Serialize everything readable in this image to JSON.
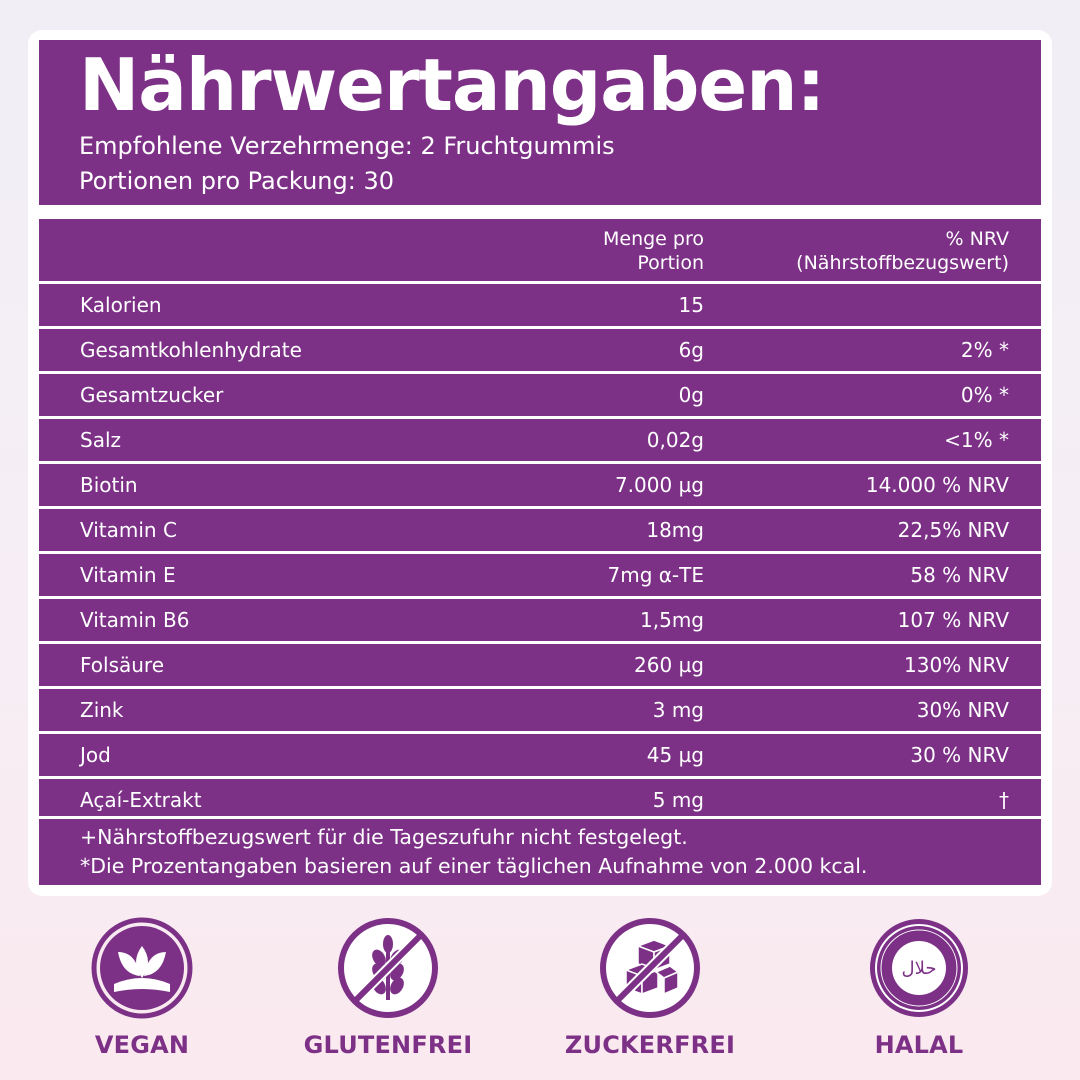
{
  "header": {
    "title": "Nährwertangaben:",
    "serving": "Empfohlene Verzehrmenge: 2 Fruchtgummis",
    "portions": "Portionen pro Packung: 30"
  },
  "table": {
    "col_amount_1": "Menge pro",
    "col_amount_2": "Portion",
    "col_nrv_1": "% NRV",
    "col_nrv_2": "(Nährstoffbezugswert)",
    "rows": [
      {
        "name": "Kalorien",
        "amount": "15",
        "nrv": ""
      },
      {
        "name": "Gesamtkohlenhydrate",
        "amount": "6g",
        "nrv": "2% *"
      },
      {
        "name": "Gesamtzucker",
        "amount": "0g",
        "nrv": "0% *"
      },
      {
        "name": "Salz",
        "amount": "0,02g",
        "nrv": "<1% *"
      },
      {
        "name": "Biotin",
        "amount": "7.000 µg",
        "nrv": "14.000 % NRV"
      },
      {
        "name": "Vitamin C",
        "amount": "18mg",
        "nrv": "22,5% NRV"
      },
      {
        "name": "Vitamin E",
        "amount": "7mg α-TE",
        "nrv": "58 % NRV"
      },
      {
        "name": "Vitamin B6",
        "amount": "1,5mg",
        "nrv": "107 % NRV"
      },
      {
        "name": "Folsäure",
        "amount": "260 µg",
        "nrv": "130% NRV"
      },
      {
        "name": "Zink",
        "amount": "3 mg",
        "nrv": "30% NRV"
      },
      {
        "name": "Jod",
        "amount": "45 µg",
        "nrv": "30 % NRV"
      },
      {
        "name": "Açaí-Extrakt",
        "amount": "5 mg",
        "nrv": "†"
      }
    ],
    "footnote_1": "+Nährstoffbezugswert für die Tageszufuhr nicht festgelegt.",
    "footnote_2": "*Die Prozentangaben basieren auf einer täglichen Aufnahme von 2.000 kcal."
  },
  "badges": [
    {
      "label": "VEGAN",
      "icon": "leaf-icon"
    },
    {
      "label": "GLUTENFREI",
      "icon": "wheat-crossed-icon"
    },
    {
      "label": "ZUCKERFREI",
      "icon": "sugar-cubes-crossed-icon"
    },
    {
      "label": "HALAL",
      "icon": "halal-icon",
      "icon_text": "حلال"
    }
  ],
  "colors": {
    "accent": "#7c3187",
    "background": "#f4eef5"
  }
}
